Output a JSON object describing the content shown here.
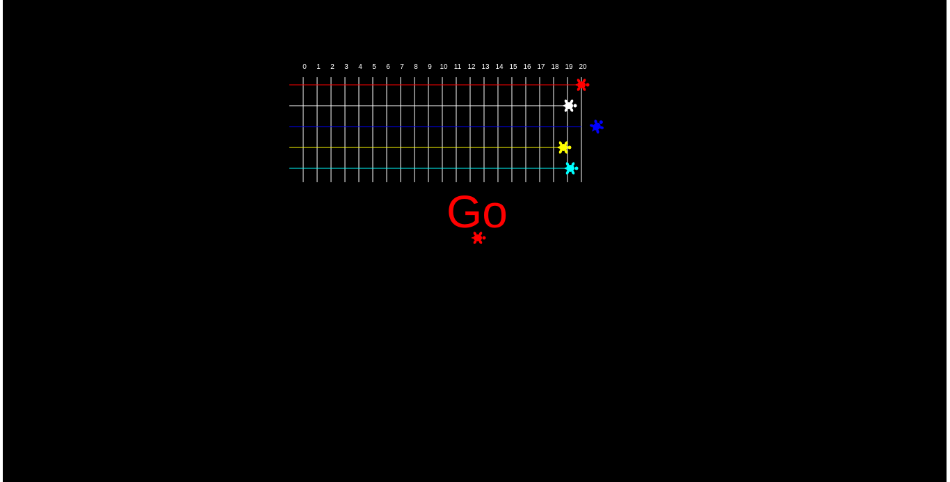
{
  "window": {
    "background": "#000000"
  },
  "track": {
    "markers": [
      "0",
      "1",
      "2",
      "3",
      "4",
      "5",
      "6",
      "7",
      "8",
      "9",
      "10",
      "11",
      "12",
      "13",
      "14",
      "15",
      "16",
      "17",
      "18",
      "19",
      "20"
    ],
    "line_color": "#ffffff"
  },
  "turtles": [
    {
      "name": "red",
      "color": "#ff0000",
      "lane_color": "#ff0000",
      "position": 20.0,
      "heading_deg": 0
    },
    {
      "name": "white",
      "color": "#ffffff",
      "lane_color": "#ffffff",
      "position": 19.1,
      "heading_deg": 0
    },
    {
      "name": "blue",
      "color": "#0000ff",
      "lane_color": "#0000ff",
      "position": 21.1,
      "heading_deg": -45
    },
    {
      "name": "yellow",
      "color": "#ffff00",
      "lane_color": "#ffff00",
      "position": 18.7,
      "heading_deg": 0
    },
    {
      "name": "cyan",
      "color": "#00ffff",
      "lane_color": "#00ffff",
      "position": 19.2,
      "heading_deg": 0
    }
  ],
  "announcement": {
    "text": "Go",
    "color": "#ff0000"
  },
  "writer_turtle": {
    "color": "#ff0000",
    "icon": "turtle-icon"
  }
}
